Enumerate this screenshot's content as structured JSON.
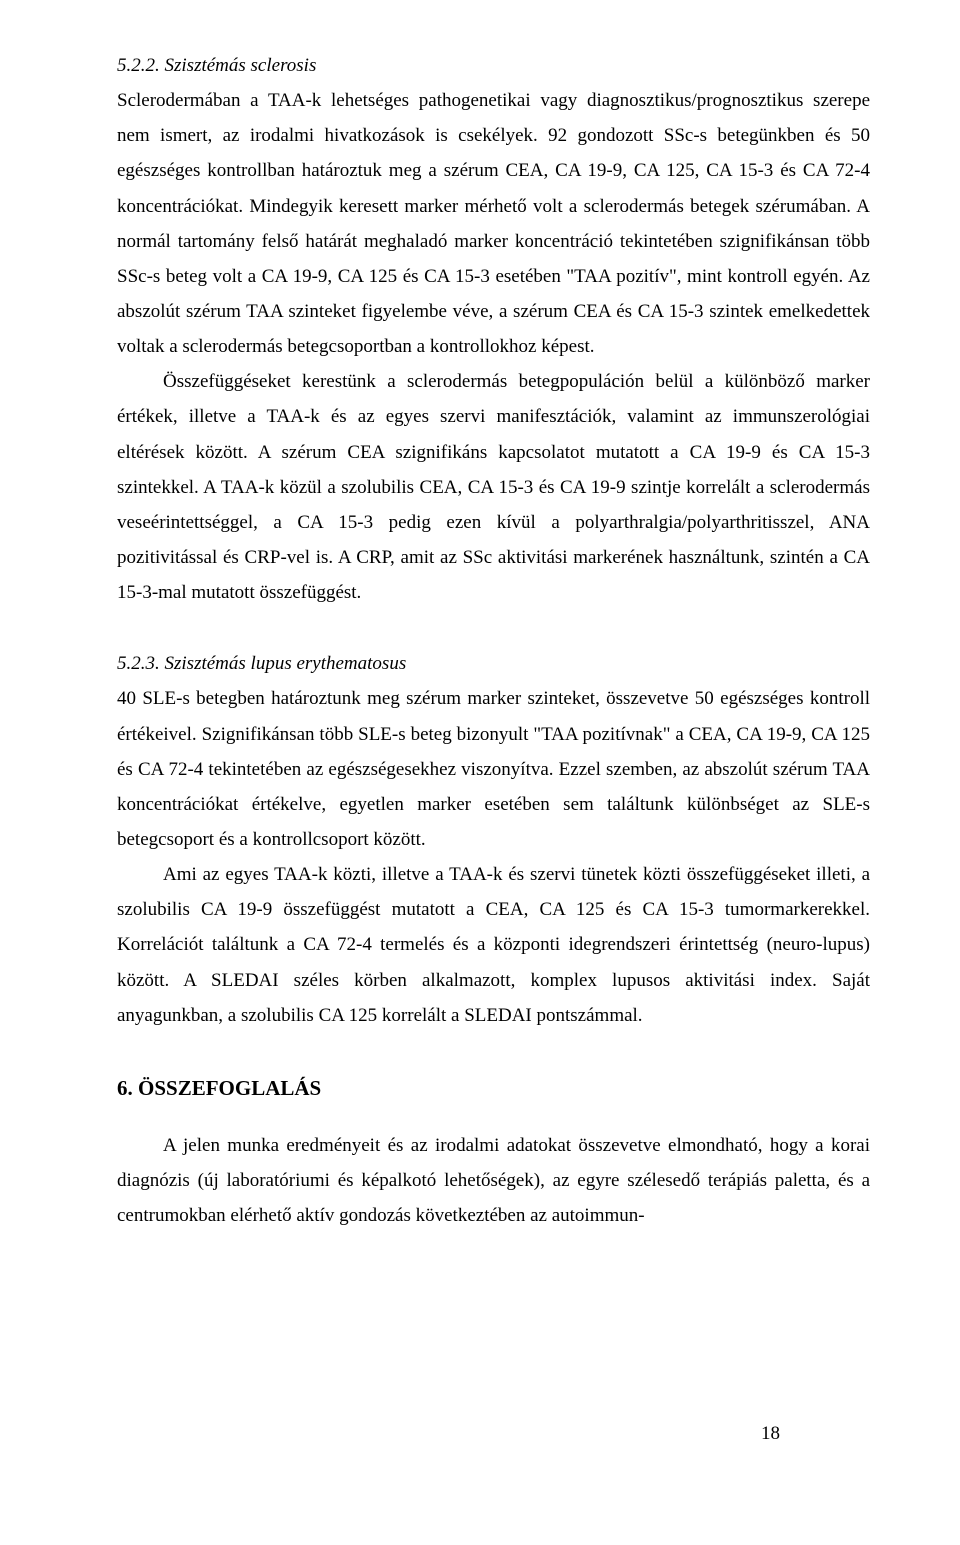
{
  "section_522": {
    "heading": "5.2.2. Szisztémás sclerosis",
    "p1": "Sclerodermában a TAA-k lehetséges pathogenetikai vagy diagnosztikus/prognosztikus szerepe nem ismert, az irodalmi hivatkozások is csekélyek. 92 gondozott SSc-s betegünkben és 50 egészséges kontrollban határoztuk meg a szérum CEA, CA 19-9, CA 125, CA 15-3 és CA 72-4 koncentrációkat. Mindegyik keresett marker mérhető volt a sclerodermás betegek szérumában. A normál tartomány felső határát meghaladó marker koncentráció tekintetében szignifikánsan több SSc-s beteg volt a CA 19-9, CA 125 és CA 15-3 esetében \"TAA pozitív\", mint kontroll egyén. Az abszolút szérum TAA szinteket figyelembe véve, a szérum CEA és CA 15-3 szintek emelkedettek voltak a sclerodermás betegcsoportban a kontrollokhoz képest.",
    "p2": "Összefüggéseket kerestünk a sclerodermás betegpopuláción belül a különböző marker értékek, illetve a TAA-k és az egyes szervi manifesztációk, valamint az immunszerológiai eltérések között. A szérum CEA szignifikáns kapcsolatot mutatott a CA 19-9 és CA 15-3 szintekkel. A TAA-k közül a szolubilis CEA, CA 15-3 és CA 19-9 szintje korrelált a sclerodermás veseérintettséggel, a CA 15-3 pedig ezen kívül a polyarthralgia/polyarthritisszel, ANA pozitivitással és CRP-vel is. A CRP, amit az SSc aktivitási markerének használtunk, szintén a CA 15-3-mal mutatott összefüggést."
  },
  "section_523": {
    "heading": "5.2.3. Szisztémás lupus erythematosus",
    "p1": " 40 SLE-s betegben határoztunk meg szérum marker szinteket, összevetve 50 egészséges kontroll értékeivel. Szignifikánsan több SLE-s beteg bizonyult \"TAA pozitívnak\" a CEA, CA 19-9, CA 125 és CA 72-4 tekintetében az egészségesekhez viszonyítva. Ezzel szemben, az abszolút szérum TAA koncentrációkat értékelve, egyetlen marker esetében sem találtunk különbséget az SLE-s betegcsoport és a kontrollcsoport között.",
    "p2": "Ami az egyes TAA-k közti, illetve a TAA-k és szervi tünetek közti összefüggéseket illeti, a szolubilis CA 19-9 összefüggést mutatott a CEA, CA 125 és CA 15-3 tumormarkerekkel. Korrelációt találtunk a CA 72-4 termelés és a központi idegrendszeri érintettség (neuro-lupus) között. A SLEDAI széles körben alkalmazott, komplex lupusos aktivitási index. Saját anyagunkban, a szolubilis CA 125 korrelált a SLEDAI pontszámmal."
  },
  "section_6": {
    "heading": "6. ÖSSZEFOGLALÁS",
    "p1": "A jelen munka eredményeit és az irodalmi adatokat összevetve elmondható, hogy a korai diagnózis (új laboratóriumi és képalkotó lehetőségek), az egyre szélesedő terápiás paletta, és a centrumokban elérhető aktív gondozás következtében az autoimmun-"
  },
  "page_number": "18"
}
